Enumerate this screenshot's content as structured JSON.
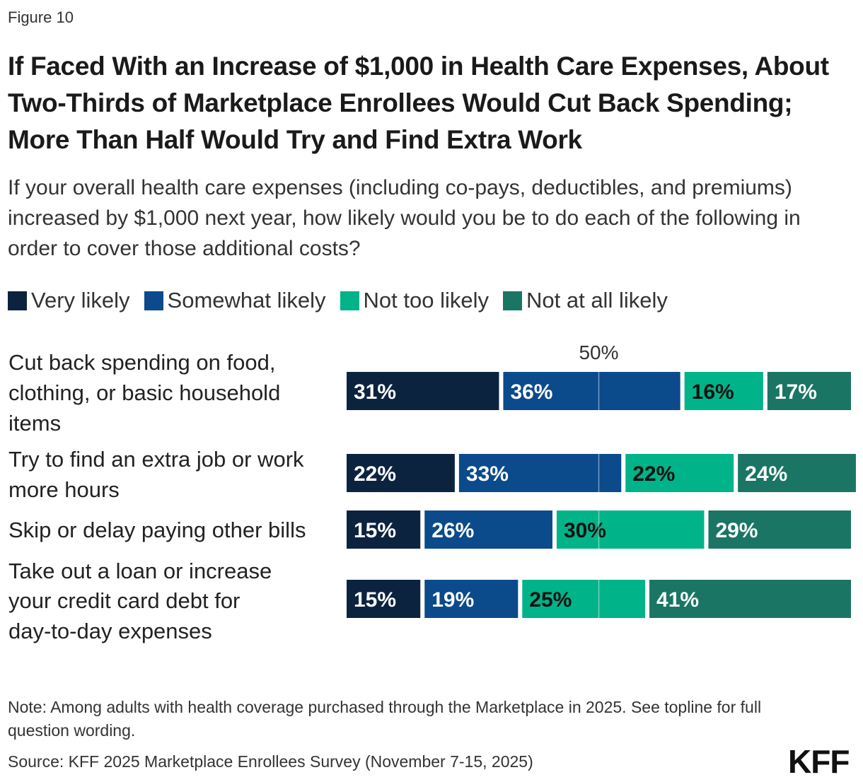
{
  "figure_label": "Figure 10",
  "title": "If Faced With an Increase of $1,000 in Health Care Expenses, About Two-Thirds of Marketplace Enrollees Would Cut Back Spending; More Than Half Would Try and Find Extra Work",
  "subtitle": "If your overall health care expenses (including co-pays, deductibles, and premiums) increased by $1,000 next year, how likely would you be to do each of the following in order to cover those additional costs?",
  "legend": [
    {
      "label": "Very likely",
      "color": "#0c2340"
    },
    {
      "label": "Somewhat likely",
      "color": "#0b4a8b"
    },
    {
      "label": "Not too likely",
      "color": "#00b389"
    },
    {
      "label": "Not at all likely",
      "color": "#1a7564"
    }
  ],
  "chart_data": {
    "type": "bar",
    "orientation": "horizontal",
    "stacked": true,
    "categories": [
      "Cut back spending on food, clothing, or basic household items",
      "Try to find an extra job or work more hours",
      "Skip or delay paying other bills",
      "Take out a loan or increase your credit card debt for day-to-day expenses"
    ],
    "series": [
      {
        "name": "Very likely",
        "values": [
          31,
          22,
          15,
          15
        ]
      },
      {
        "name": "Somewhat likely",
        "values": [
          36,
          33,
          26,
          19
        ]
      },
      {
        "name": "Not too likely",
        "values": [
          16,
          22,
          30,
          25
        ]
      },
      {
        "name": "Not at all likely",
        "values": [
          17,
          24,
          29,
          41
        ]
      }
    ],
    "value_suffix": "%",
    "reference_line": {
      "value": 50,
      "label": "50%"
    },
    "label_colors": [
      "#ffffff",
      "#ffffff",
      "#111111",
      "#ffffff"
    ]
  },
  "note": "Note: Among adults with health coverage purchased through the Marketplace in 2025. See topline for full question wording.",
  "source": "Source: KFF 2025 Marketplace Enrollees Survey (November 7-15, 2025)",
  "logo_text": "KFF"
}
